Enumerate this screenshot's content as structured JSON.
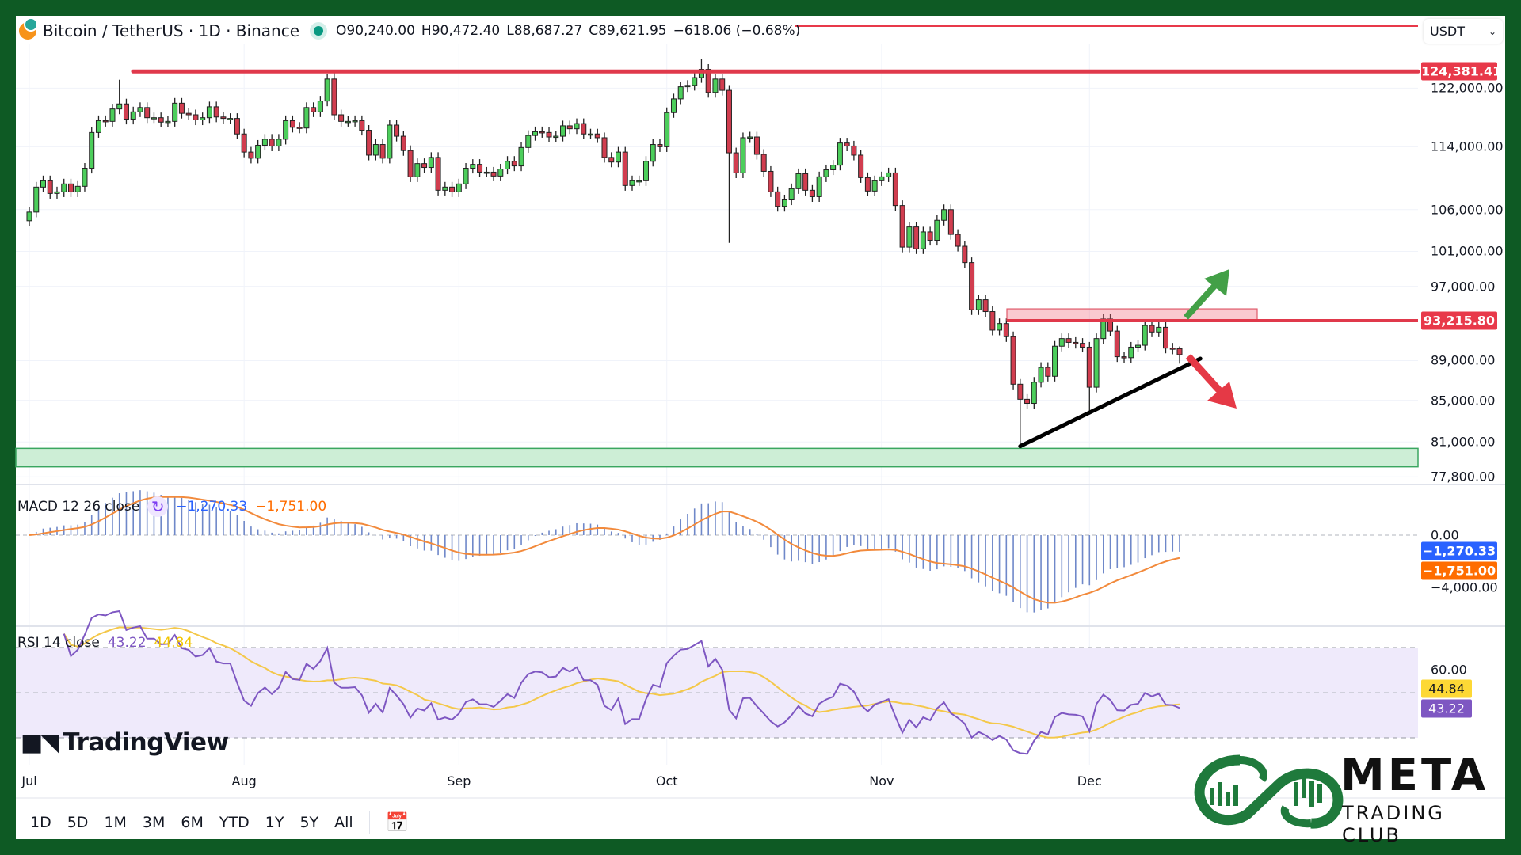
{
  "header": {
    "symbol": "Bitcoin / TetherUS · 1D · Binance",
    "open": "O90,240.00",
    "high": "H90,472.40",
    "low": "L88,687.27",
    "close": "C89,621.95",
    "change": "−618.06 (−0.68%)"
  },
  "currency_select": {
    "value": "USDT"
  },
  "price_axis": {
    "ticks": [
      {
        "value": 122000,
        "label": "122,000.00"
      },
      {
        "value": 114000,
        "label": "114,000.00"
      },
      {
        "value": 106000,
        "label": "106,000.00"
      },
      {
        "value": 101000,
        "label": "101,000.00"
      },
      {
        "value": 97000,
        "label": "97,000.00"
      },
      {
        "value": 89000,
        "label": "89,000.00"
      },
      {
        "value": 85000,
        "label": "85,000.00"
      },
      {
        "value": 81000,
        "label": "81,000.00"
      },
      {
        "value": 77800,
        "label": "77,800.00"
      }
    ],
    "tags": [
      {
        "value": 124381.41,
        "label": "124,381.41",
        "color": "#e8394a"
      },
      {
        "value": 93215.8,
        "label": "93,215.80",
        "color": "#e8394a"
      }
    ]
  },
  "macd": {
    "legend": "MACD 12 26 close",
    "macd_value": "−1,270.33",
    "signal_value": "−1,751.00",
    "axis": [
      {
        "value": 0,
        "label": "0.00"
      },
      {
        "value": -4000,
        "label": "−4,000.00"
      }
    ],
    "macd_color": "#2962ff",
    "signal_color": "#ff6d00"
  },
  "rsi": {
    "legend": "RSI 14 close",
    "rsi_value": "43.22",
    "ma_value": "44.84",
    "axis_label": "60.00",
    "rsi_color": "#7e57c2",
    "ma_color": "#fdd835"
  },
  "time_axis": {
    "ticks": [
      {
        "label": "Jul",
        "day": 0
      },
      {
        "label": "Aug",
        "day": 31
      },
      {
        "label": "Sep",
        "day": 62
      },
      {
        "label": "Oct",
        "day": 92
      },
      {
        "label": "Nov",
        "day": 123
      },
      {
        "label": "Dec",
        "day": 153
      }
    ]
  },
  "toolbar": {
    "ranges": [
      "1D",
      "5D",
      "1M",
      "3M",
      "6M",
      "YTD",
      "1Y",
      "5Y",
      "All"
    ]
  },
  "branding": {
    "tradingview": "TradingView",
    "meta_title": "META",
    "meta_subtitle": "TRADING CLUB"
  },
  "chart_data": {
    "type": "candlestick",
    "title": "Bitcoin / TetherUS · 1D · Binance",
    "scale": "log",
    "ylim": [
      77800,
      127000
    ],
    "close_thousands": [
      105.7,
      108.8,
      109.6,
      108.0,
      108.2,
      109.2,
      108.2,
      108.9,
      111.2,
      115.9,
      117.5,
      117.4,
      119.1,
      119.8,
      117.7,
      118.7,
      119.3,
      117.9,
      117.9,
      117.3,
      117.4,
      119.9,
      118.5,
      118.3,
      117.6,
      117.9,
      119.4,
      118.0,
      117.8,
      117.8,
      115.7,
      113.3,
      112.5,
      114.2,
      115.0,
      114.1,
      115.0,
      117.5,
      116.6,
      116.5,
      119.3,
      118.7,
      120.2,
      123.3,
      118.3,
      117.4,
      117.4,
      117.5,
      116.2,
      112.9,
      114.3,
      112.5,
      116.9,
      115.4,
      113.5,
      110.1,
      111.8,
      111.3,
      112.6,
      108.4,
      108.8,
      108.2,
      109.2,
      111.2,
      111.7,
      110.7,
      110.7,
      110.2,
      111.1,
      112.1,
      111.5,
      113.9,
      115.5,
      116.0,
      115.9,
      115.3,
      115.4,
      116.8,
      116.4,
      117.1,
      115.7,
      115.7,
      115.2,
      112.6,
      112.0,
      113.3,
      109.0,
      109.6,
      109.6,
      112.1,
      114.3,
      114.0,
      118.6,
      120.5,
      122.2,
      122.4,
      123.5,
      124.7,
      121.4,
      123.3,
      121.7,
      113.2,
      110.6,
      115.2,
      115.3,
      113.0,
      110.8,
      108.2,
      106.4,
      107.2,
      108.6,
      110.5,
      108.4,
      107.6,
      110.1,
      111.0,
      111.6,
      114.5,
      114.1,
      112.9,
      110.0,
      108.3,
      109.6,
      110.1,
      110.6,
      106.5,
      101.5,
      103.9,
      101.3,
      103.3,
      102.3,
      104.7,
      106.0,
      103.0,
      101.6,
      99.7,
      94.4,
      95.5,
      94.2,
      92.2,
      92.9,
      91.5,
      86.6,
      85.1,
      84.7,
      86.8,
      88.3,
      87.4,
      90.5,
      91.3,
      90.9,
      90.8,
      90.4,
      86.3,
      91.3,
      93.4,
      92.1,
      89.4,
      89.3,
      90.4,
      90.6,
      92.7,
      92.0,
      92.5,
      90.3,
      90.2,
      89.62
    ],
    "high_overrides": {
      "13": 123.2,
      "44": 124.4,
      "97": 126.2,
      "166": 90.47
    },
    "low_overrides": {
      "101": 102.0,
      "143": 80.6,
      "153": 84.0,
      "166": 88.69
    },
    "open_overrides": {
      "166": 90.24
    },
    "annotations": {
      "resistance_top": 124381.41,
      "resistance_zone": 93215.8,
      "resistance_zone_top": 94500,
      "support_zone": [
        78700,
        80400
      ],
      "trendline": [
        {
          "day": 143,
          "price": 80600
        },
        {
          "day": 169,
          "price": 89200
        }
      ],
      "bullish_arrow": "up-right green",
      "bearish_arrow": "down-right red"
    }
  }
}
